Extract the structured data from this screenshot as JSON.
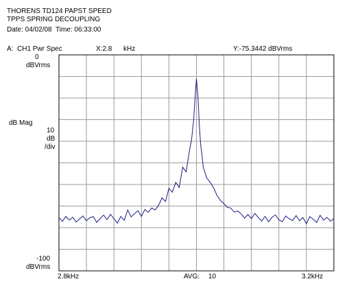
{
  "header": {
    "title_line1": "THORENS TD124 PAPST SPEED",
    "title_line2": "TPPS SPRING DECOUPLING",
    "datetime": "Date: 04/02/08  Time: 06:33:00"
  },
  "trace_info": {
    "trace_label": "A:  CH1 Pwr Spec",
    "x_readout": "X:2.8",
    "x_unit": "kHz",
    "y_readout": "Y:-75.3442 dBVrms"
  },
  "y_axis": {
    "top_value": "0",
    "top_unit": "dBVrms",
    "mag_label": "dB Mag",
    "scale_value": "10",
    "scale_unit": "dB",
    "scale_per": "/div",
    "bottom_value": "-100",
    "bottom_unit": "dBVrms"
  },
  "x_axis": {
    "start_label": "2.8kHz",
    "avg_label": "AVG:",
    "avg_value": "10",
    "end_label": "3.2kHz"
  },
  "colors": {
    "trace": "#1a1a80",
    "grid": "#9a9a9a",
    "frame": "#000000"
  },
  "chart_data": {
    "type": "line",
    "title": "THORENS TD124 PAPST SPEED",
    "subtitle": "TPPS SPRING DECOUPLING",
    "xlabel": "",
    "ylabel": "dB Mag",
    "xlim": [
      2800,
      3200
    ],
    "ylim": [
      -100,
      0
    ],
    "x_unit": "Hz",
    "y_unit": "dBVrms",
    "grid": true,
    "divisions": {
      "x": 10,
      "y": 10
    },
    "series": [
      {
        "x": [
          2800,
          2805,
          2810,
          2815,
          2820,
          2825,
          2830,
          2835,
          2840,
          2845,
          2850,
          2855,
          2860,
          2865,
          2870,
          2875,
          2880,
          2885,
          2890,
          2895,
          2900,
          2905,
          2910,
          2915,
          2920,
          2925,
          2930,
          2935,
          2940,
          2945,
          2950,
          2955,
          2960,
          2965,
          2970,
          2975,
          2980,
          2985,
          2990,
          2993,
          2996,
          2998,
          3000,
          3002,
          3004,
          3006,
          3008,
          3010,
          3015,
          3020,
          3025,
          3030,
          3035,
          3040,
          3045,
          3050,
          3055,
          3060,
          3065,
          3070,
          3075,
          3080,
          3085,
          3090,
          3095,
          3100,
          3105,
          3110,
          3115,
          3120,
          3125,
          3130,
          3135,
          3140,
          3145,
          3150,
          3155,
          3160,
          3165,
          3170,
          3175,
          3180,
          3185,
          3190,
          3195,
          3200
        ],
        "y": [
          -75.3,
          -77.1,
          -74.8,
          -76.5,
          -75.2,
          -77.4,
          -75.9,
          -74.6,
          -76.8,
          -75.4,
          -74.9,
          -77.6,
          -75.7,
          -74.2,
          -76.3,
          -73.8,
          -75.9,
          -77.9,
          -74.8,
          -76.6,
          -71.8,
          -75.0,
          -73.5,
          -72.2,
          -74.8,
          -71.6,
          -72.9,
          -70.9,
          -71.8,
          -69.6,
          -66.2,
          -67.9,
          -61.8,
          -63.6,
          -59.0,
          -61.4,
          -52.0,
          -54.2,
          -44.0,
          -39.0,
          -30.0,
          -20.0,
          -11.0,
          -18.0,
          -31.0,
          -41.0,
          -46.0,
          -52.0,
          -57.0,
          -59.0,
          -61.6,
          -65.1,
          -67.4,
          -68.9,
          -70.6,
          -70.9,
          -72.8,
          -72.3,
          -73.6,
          -75.6,
          -73.9,
          -75.8,
          -73.4,
          -75.3,
          -76.9,
          -74.8,
          -77.3,
          -75.2,
          -74.1,
          -76.4,
          -77.2,
          -74.6,
          -75.9,
          -76.7,
          -74.4,
          -76.8,
          -75.3,
          -78.2,
          -74.9,
          -76.1,
          -77.6,
          -74.3,
          -76.5,
          -75.2,
          -77.0,
          -75.8
        ]
      }
    ]
  }
}
